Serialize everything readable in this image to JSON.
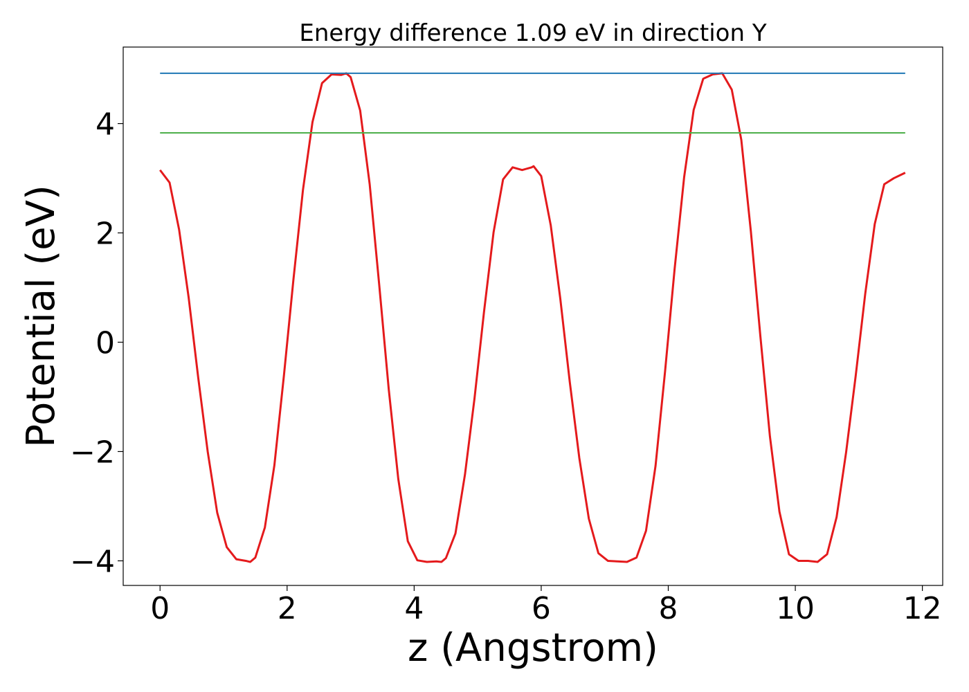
{
  "chart_data": {
    "type": "line",
    "title": "Energy difference 1.09 eV in direction Y",
    "xlabel": "z (Angstrom)",
    "ylabel": "Potential (eV)",
    "xlim": [
      -0.58,
      12.32
    ],
    "ylim": [
      -4.45,
      5.4
    ],
    "xticks": [
      0,
      2,
      4,
      6,
      8,
      10,
      12
    ],
    "xtick_labels": [
      "0",
      "2",
      "4",
      "6",
      "8",
      "10",
      "12"
    ],
    "yticks": [
      -4,
      -2,
      0,
      2,
      4
    ],
    "ytick_labels": [
      "−4",
      "−2",
      "0",
      "2",
      "4"
    ],
    "grid": false,
    "series": [
      {
        "style": "curve",
        "color": "#e41a1c",
        "x": [
          0.0,
          0.15,
          0.3,
          0.45,
          0.6,
          0.75,
          0.9,
          1.05,
          1.2,
          1.35,
          1.42,
          1.5,
          1.65,
          1.8,
          1.95,
          2.1,
          2.25,
          2.4,
          2.55,
          2.7,
          2.85,
          2.93,
          3.0,
          3.15,
          3.3,
          3.45,
          3.6,
          3.75,
          3.9,
          4.05,
          4.2,
          4.35,
          4.43,
          4.5,
          4.65,
          4.8,
          4.95,
          5.1,
          5.25,
          5.4,
          5.55,
          5.7,
          5.85,
          5.88,
          6.0,
          6.15,
          6.3,
          6.45,
          6.6,
          6.75,
          6.9,
          7.05,
          7.2,
          7.35,
          7.5,
          7.65,
          7.8,
          7.95,
          8.1,
          8.25,
          8.4,
          8.55,
          8.7,
          8.85,
          9.0,
          9.15,
          9.3,
          9.45,
          9.6,
          9.75,
          9.9,
          10.05,
          10.2,
          10.35,
          10.5,
          10.65,
          10.8,
          10.95,
          11.1,
          11.25,
          11.4,
          11.55,
          11.73
        ],
        "y": [
          3.15,
          2.92,
          2.06,
          0.82,
          -0.64,
          -2.0,
          -3.12,
          -3.75,
          -3.97,
          -4.0,
          -4.02,
          -3.94,
          -3.39,
          -2.25,
          -0.61,
          1.15,
          2.79,
          4.03,
          4.74,
          4.9,
          4.89,
          4.92,
          4.85,
          4.24,
          2.89,
          1.05,
          -0.86,
          -2.5,
          -3.64,
          -3.99,
          -4.02,
          -4.01,
          -4.02,
          -3.95,
          -3.5,
          -2.42,
          -1.03,
          0.56,
          2.01,
          2.98,
          3.2,
          3.15,
          3.2,
          3.22,
          3.04,
          2.14,
          0.8,
          -0.73,
          -2.12,
          -3.23,
          -3.86,
          -4.0,
          -4.01,
          -4.02,
          -3.94,
          -3.45,
          -2.26,
          -0.53,
          1.34,
          3.02,
          4.25,
          4.82,
          4.9,
          4.92,
          4.62,
          3.7,
          2.03,
          0.11,
          -1.72,
          -3.1,
          -3.88,
          -4.0,
          -4.0,
          -4.02,
          -3.88,
          -3.2,
          -2.01,
          -0.62,
          0.88,
          2.16,
          2.89,
          3.0,
          3.1
        ]
      },
      {
        "style": "hline",
        "color": "#1f77b4",
        "x": [
          0.0,
          11.73
        ],
        "y": [
          4.92,
          4.92
        ]
      },
      {
        "style": "hline",
        "color": "#4daf4a",
        "x": [
          0.0,
          11.73
        ],
        "y": [
          3.83,
          3.83
        ]
      }
    ]
  }
}
